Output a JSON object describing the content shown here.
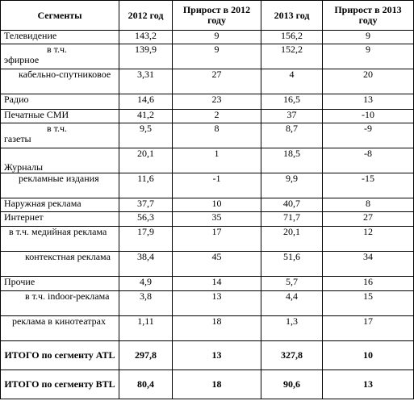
{
  "headers": [
    "Сегменты",
    "2012 год",
    "Прирост в 2012 году",
    "2013 год",
    "Прирост в 2013 году"
  ],
  "rows": [
    {
      "seg": "Телевидение",
      "v2012": "143,2",
      "g2012": "9",
      "v2013": "156,2",
      "g2013": "9"
    },
    {
      "seg_a": "в т.ч.",
      "seg_b": "эфирное",
      "v2012": "139,9",
      "g2012": "9",
      "v2013": "152,2",
      "g2013": "9"
    },
    {
      "seg": "кабельно-спутниковое",
      "v2012": "3,31",
      "g2012": "27",
      "v2013": "4",
      "g2013": "20"
    },
    {
      "seg": "Радио",
      "v2012": "14,6",
      "g2012": "23",
      "v2013": "16,5",
      "g2013": "13"
    },
    {
      "seg": "Печатные СМИ",
      "v2012": "41,2",
      "g2012": "2",
      "v2013": "37",
      "g2013": "-10"
    },
    {
      "seg_a": "в т.ч.",
      "seg_b": "газеты",
      "v2012": "9,5",
      "g2012": "8",
      "v2013": "8,7",
      "g2013": "-9"
    },
    {
      "seg": "Журналы",
      "v2012": "20,1",
      "g2012": "1",
      "v2013": "18,5",
      "g2013": "-8"
    },
    {
      "seg": "рекламные издания",
      "v2012": "11,6",
      "g2012": "-1",
      "v2013": "9,9",
      "g2013": "-15"
    },
    {
      "seg": "Наружная реклама",
      "v2012": "37,7",
      "g2012": "10",
      "v2013": "40,7",
      "g2013": "8"
    },
    {
      "seg": "Интернет",
      "v2012": "56,3",
      "g2012": "35",
      "v2013": "71,7",
      "g2013": "27"
    },
    {
      "seg": "в т.ч. медийная реклама",
      "v2012": "17,9",
      "g2012": "17",
      "v2013": "20,1",
      "g2013": "12"
    },
    {
      "seg": "контекстная реклама",
      "v2012": "38,4",
      "g2012": "45",
      "v2013": "51,6",
      "g2013": "34"
    },
    {
      "seg": "Прочие",
      "v2012": "4,9",
      "g2012": "14",
      "v2013": "5,7",
      "g2013": "16"
    },
    {
      "seg": "в т.ч. indoor-реклама",
      "v2012": "3,8",
      "g2012": "13",
      "v2013": "4,4",
      "g2013": "15"
    },
    {
      "seg": "реклама в кинотеатрах",
      "v2012": "1,11",
      "g2012": "18",
      "v2013": "1,3",
      "g2013": "17"
    },
    {
      "seg": "ИТОГО по сегменту ATL",
      "v2012": "297,8",
      "g2012": "13",
      "v2013": "327,8",
      "g2013": "10"
    },
    {
      "seg": "ИТОГО по сегменту BTL",
      "v2012": "80,4",
      "g2012": "18",
      "v2013": "90,6",
      "g2013": "13"
    }
  ]
}
